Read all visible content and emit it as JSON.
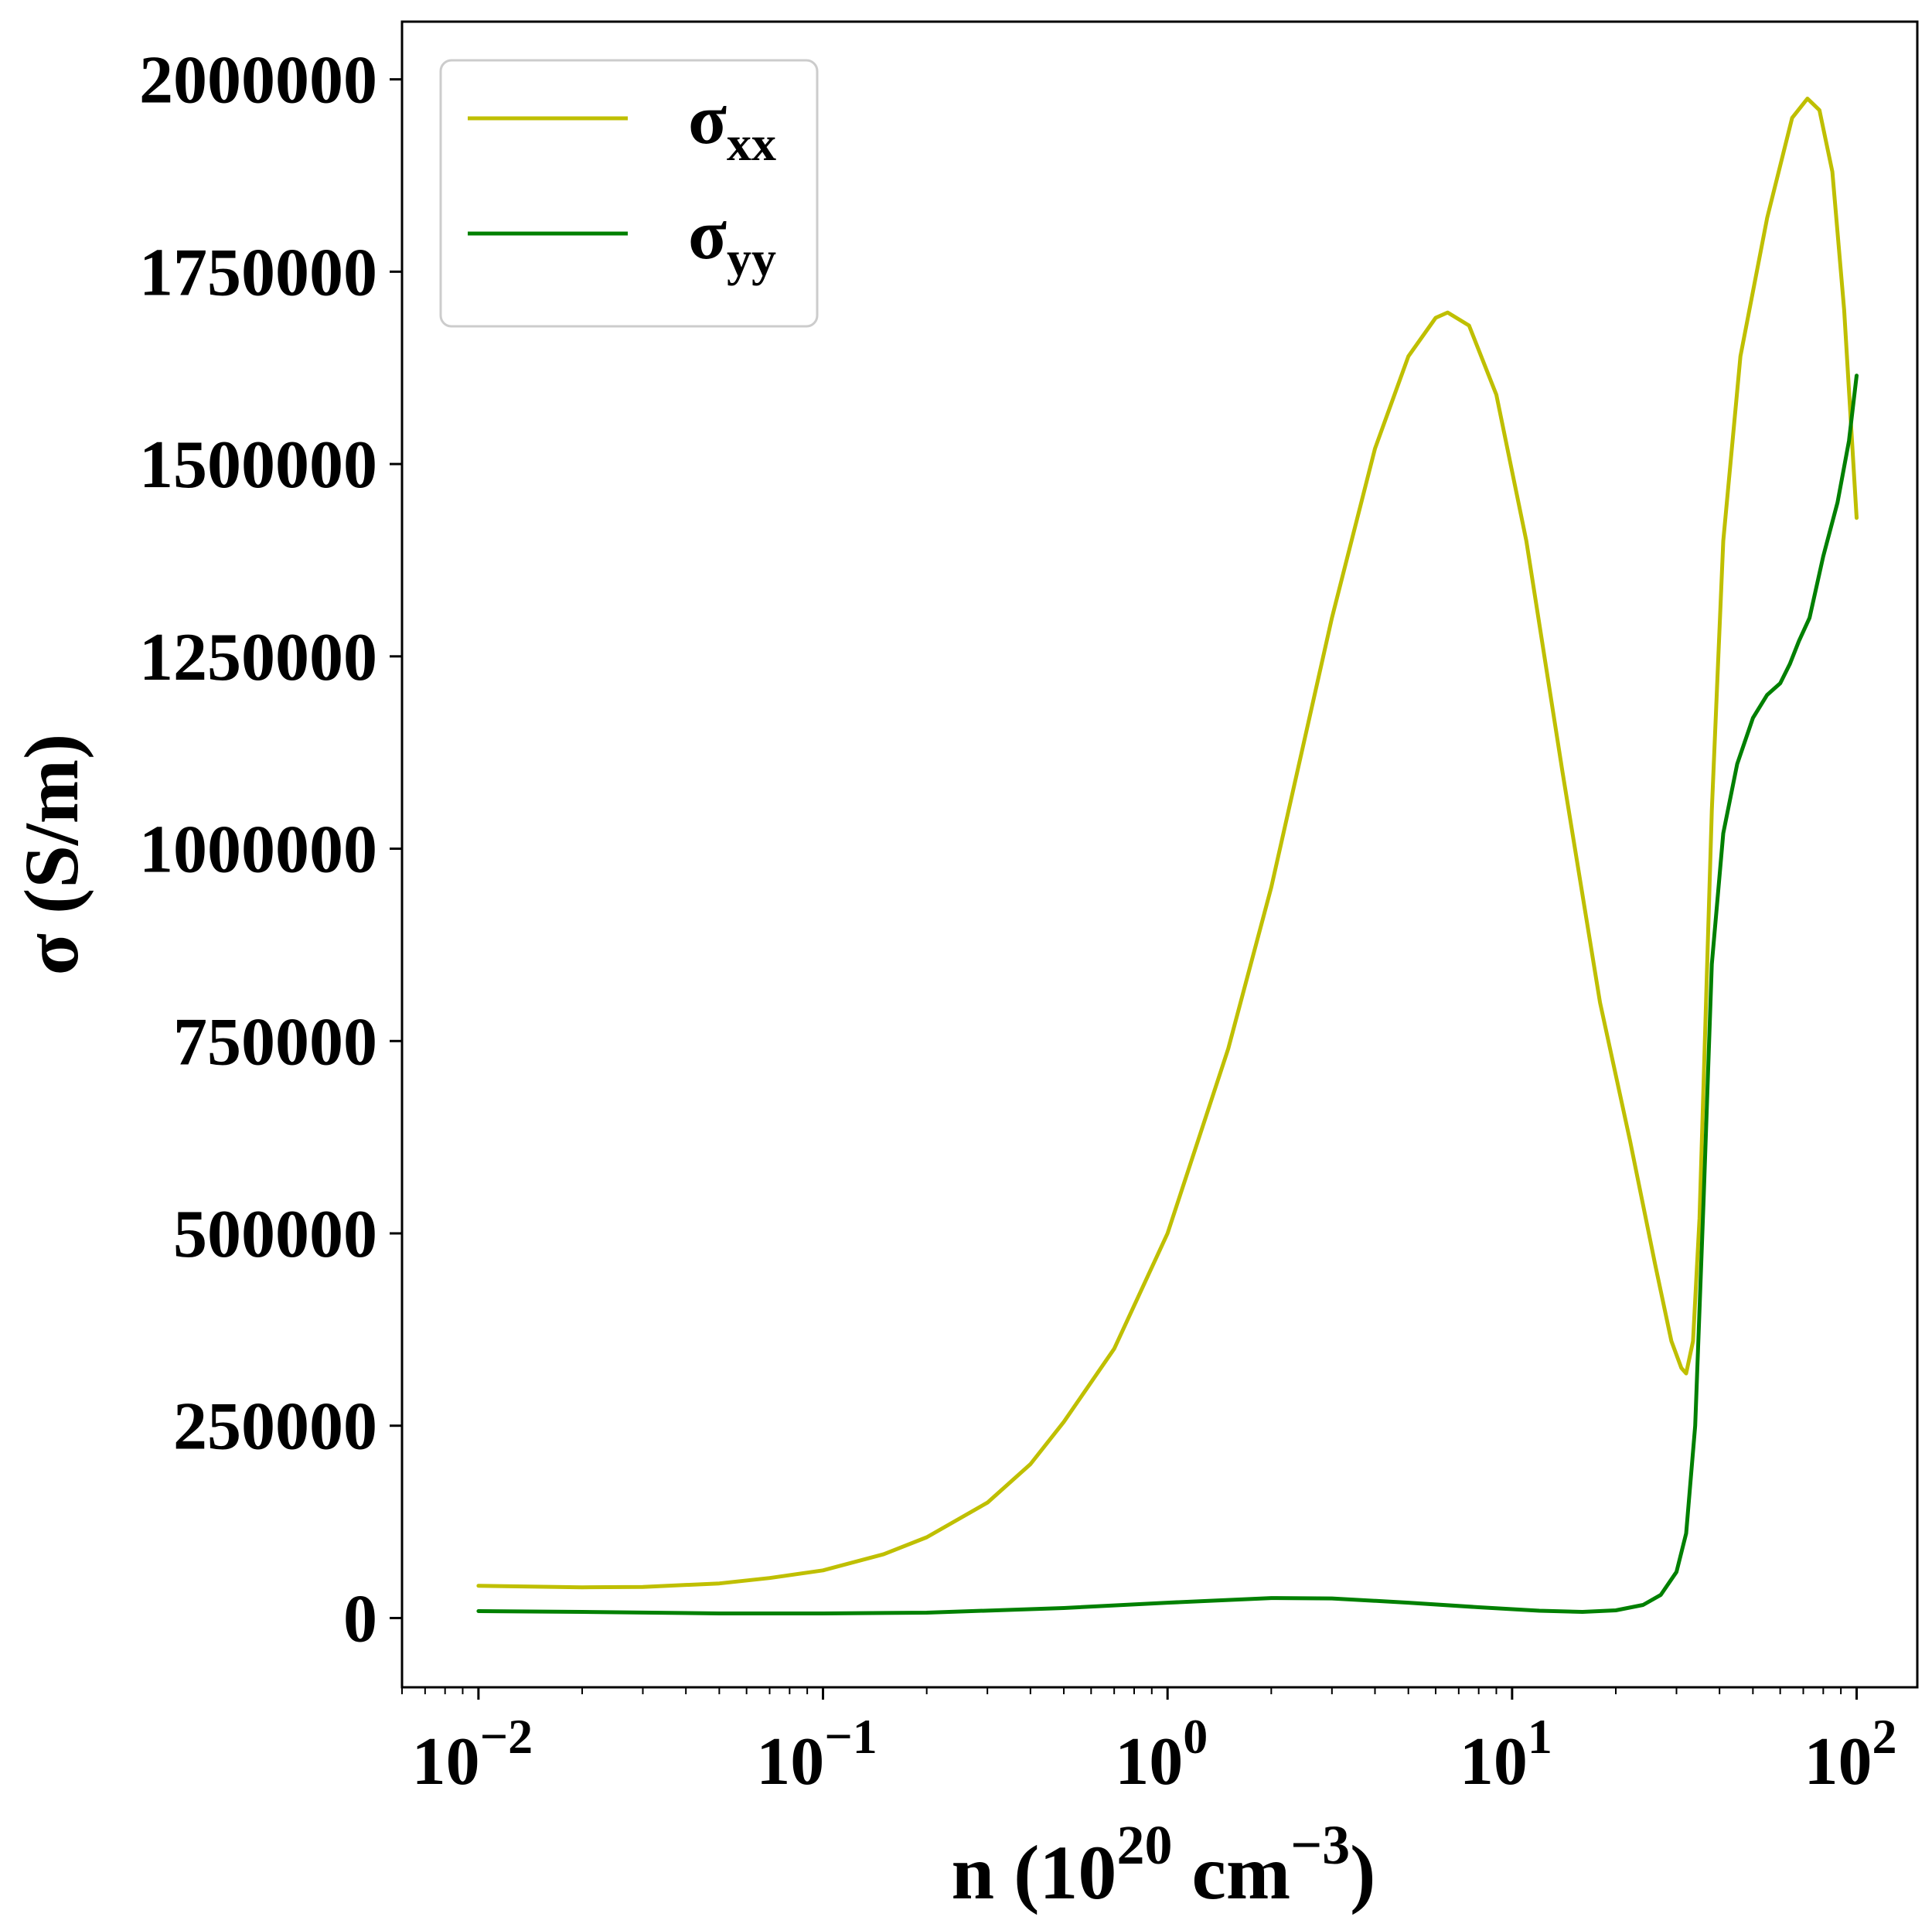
{
  "chart_data": {
    "type": "line",
    "xscale": "log",
    "xlim": [
      0.006,
      150
    ],
    "ylim": [
      -90000,
      2075000
    ],
    "x_ticks": [
      {
        "base": "10",
        "exp": "−2"
      },
      {
        "base": "10",
        "exp": "−1"
      },
      {
        "base": "10",
        "exp": "0"
      },
      {
        "base": "10",
        "exp": "1"
      },
      {
        "base": "10",
        "exp": "2"
      }
    ],
    "y_ticks": [
      "0",
      "250000",
      "500000",
      "750000",
      "1000000",
      "1250000",
      "1500000",
      "1750000",
      "2000000"
    ],
    "xlabel": {
      "prefix": "n (10",
      "exp1": "20",
      "mid": " cm",
      "exp2": "−3",
      "suffix": ")"
    },
    "ylabel": "σ (S/m)",
    "grid": false,
    "legend_position": "top-left",
    "series": [
      {
        "name": {
          "base": "σ",
          "sub": "xx"
        },
        "color": "#bfbf00",
        "points": [
          [
            0.01,
            42000
          ],
          [
            0.02,
            40000
          ],
          [
            0.03,
            40500
          ],
          [
            0.05,
            45000
          ],
          [
            0.07,
            52000
          ],
          [
            0.1,
            62000
          ],
          [
            0.15,
            83000
          ],
          [
            0.2,
            105000
          ],
          [
            0.3,
            150000
          ],
          [
            0.4,
            200000
          ],
          [
            0.5,
            255000
          ],
          [
            0.7,
            350000
          ],
          [
            1.0,
            500000
          ],
          [
            1.5,
            740000
          ],
          [
            2.0,
            950000
          ],
          [
            3.0,
            1300000
          ],
          [
            4.0,
            1520000
          ],
          [
            5.0,
            1640000
          ],
          [
            6.0,
            1690000
          ],
          [
            6.5,
            1697000
          ],
          [
            7.5,
            1680000
          ],
          [
            9.0,
            1590000
          ],
          [
            11.0,
            1400000
          ],
          [
            14.0,
            1100000
          ],
          [
            18.0,
            800000
          ],
          [
            22.0,
            620000
          ],
          [
            26.0,
            460000
          ],
          [
            29.0,
            360000
          ],
          [
            31.0,
            325000
          ],
          [
            32.0,
            318000
          ],
          [
            33.5,
            360000
          ],
          [
            35.0,
            520000
          ],
          [
            38.0,
            1050000
          ],
          [
            41.0,
            1400000
          ],
          [
            46.0,
            1640000
          ],
          [
            55.0,
            1820000
          ],
          [
            65.0,
            1950000
          ],
          [
            72.0,
            1975000
          ],
          [
            78.0,
            1960000
          ],
          [
            85.0,
            1880000
          ],
          [
            92.0,
            1700000
          ],
          [
            100.0,
            1430000
          ]
        ]
      },
      {
        "name": {
          "base": "σ",
          "sub": "yy"
        },
        "color": "#008000",
        "points": [
          [
            0.01,
            9000
          ],
          [
            0.02,
            8000
          ],
          [
            0.05,
            6000
          ],
          [
            0.1,
            6000
          ],
          [
            0.2,
            7000
          ],
          [
            0.5,
            13000
          ],
          [
            1.0,
            20000
          ],
          [
            2.0,
            26000
          ],
          [
            3.0,
            25500
          ],
          [
            5.0,
            20000
          ],
          [
            8.0,
            14000
          ],
          [
            12.0,
            9500
          ],
          [
            16.0,
            8000
          ],
          [
            20.0,
            10000
          ],
          [
            24.0,
            17000
          ],
          [
            27.0,
            30000
          ],
          [
            30.0,
            60000
          ],
          [
            32.0,
            110000
          ],
          [
            34.0,
            250000
          ],
          [
            36.0,
            550000
          ],
          [
            38.0,
            850000
          ],
          [
            41.0,
            1020000
          ],
          [
            45.0,
            1110000
          ],
          [
            50.0,
            1170000
          ],
          [
            55.0,
            1200000
          ],
          [
            60.0,
            1215000
          ],
          [
            64.0,
            1240000
          ],
          [
            68.0,
            1270000
          ],
          [
            73.0,
            1300000
          ],
          [
            80.0,
            1380000
          ],
          [
            88.0,
            1450000
          ],
          [
            95.0,
            1530000
          ],
          [
            100.0,
            1615000
          ]
        ]
      }
    ]
  }
}
